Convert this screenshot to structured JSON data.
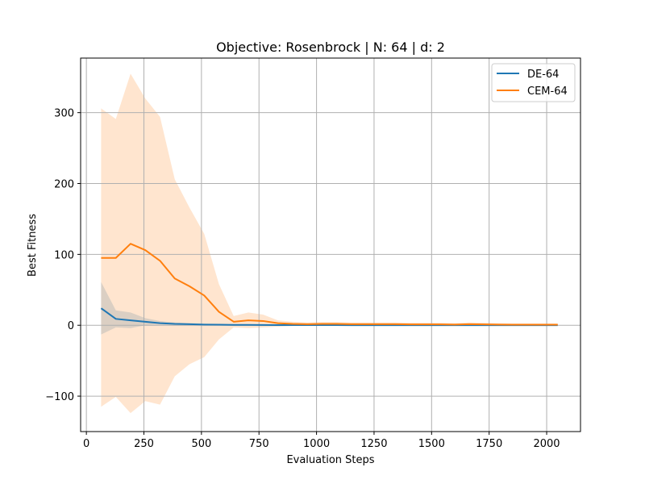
{
  "chart_data": {
    "type": "line",
    "title": "Objective: Rosenbrock | N: 64 | d: 2",
    "xlabel": "Evaluation Steps",
    "ylabel": "Best Fitness",
    "xlim": [
      -25,
      2147
    ],
    "ylim": [
      -150,
      377
    ],
    "xticks": [
      0,
      250,
      500,
      750,
      1000,
      1250,
      1500,
      1750,
      2000
    ],
    "xtick_labels": [
      "0",
      "250",
      "500",
      "750",
      "1000",
      "1250",
      "1500",
      "1750",
      "2000"
    ],
    "yticks": [
      -100,
      0,
      100,
      200,
      300
    ],
    "ytick_labels": [
      "−100",
      "0",
      "100",
      "200",
      "300"
    ],
    "grid": true,
    "legend_position": "top-right",
    "x": [
      64,
      128,
      192,
      256,
      320,
      384,
      448,
      512,
      576,
      640,
      704,
      768,
      832,
      896,
      960,
      1024,
      1088,
      1152,
      1216,
      1280,
      1344,
      1408,
      1472,
      1536,
      1600,
      1664,
      1728,
      1792,
      1856,
      1920,
      1984,
      2048
    ],
    "series": [
      {
        "name": "DE-64",
        "color": "#1f77b4",
        "band_color": "#1f77b4",
        "values": [
          24,
          9,
          7,
          5,
          3,
          2,
          1.5,
          1,
          0.8,
          0.6,
          0.5,
          0.4,
          0.3,
          0.3,
          0.2,
          0.2,
          0.2,
          0.15,
          0.15,
          0.1,
          0.1,
          0.1,
          0.1,
          0.1,
          0.1,
          0.1,
          0.1,
          0.1,
          0.1,
          0.1,
          0.1,
          0.1
        ],
        "lower": [
          -13,
          -3,
          -4,
          0,
          1,
          0.5,
          0.3,
          0.2,
          0.1,
          0,
          0,
          0,
          0,
          0,
          0,
          0,
          0,
          0,
          0,
          0,
          0,
          0,
          0,
          0,
          0,
          0,
          0,
          0,
          0,
          0,
          0,
          0
        ],
        "upper": [
          61,
          21,
          18,
          10,
          6,
          4,
          3,
          2,
          1.5,
          1.2,
          1,
          0.8,
          0.6,
          0.6,
          0.4,
          0.4,
          0.4,
          0.3,
          0.3,
          0.2,
          0.2,
          0.2,
          0.2,
          0.2,
          0.2,
          0.2,
          0.2,
          0.2,
          0.2,
          0.2,
          0.2,
          0.2
        ]
      },
      {
        "name": "CEM-64",
        "color": "#ff7f0e",
        "band_color": "#ff7f0e",
        "values": [
          95,
          95,
          115,
          106,
          91,
          66,
          55,
          42,
          19,
          5,
          7,
          6,
          3,
          2,
          1.5,
          2,
          2,
          1.5,
          1.5,
          1.5,
          1.5,
          1.2,
          1.2,
          1.2,
          1,
          1.5,
          1.2,
          1,
          0.8,
          0.8,
          0.8,
          0.8
        ],
        "lower": [
          -115,
          -101,
          -124,
          -107,
          -112,
          -72,
          -55,
          -45,
          -20,
          -3,
          -4,
          -3,
          -2,
          -1,
          -1,
          -1,
          -1,
          -1,
          -1,
          -1,
          -1,
          -1,
          -1,
          -1,
          -1,
          -1,
          -1,
          -1,
          -1,
          -1,
          -1,
          -1
        ],
        "upper": [
          306,
          291,
          355,
          320,
          294,
          206,
          166,
          129,
          58,
          13,
          18,
          15,
          7,
          5,
          4,
          4.5,
          4.5,
          4,
          4,
          4,
          4,
          3.5,
          3.5,
          3.5,
          3,
          4,
          3.5,
          3,
          2.5,
          2.5,
          2.5,
          2.5
        ]
      }
    ]
  }
}
